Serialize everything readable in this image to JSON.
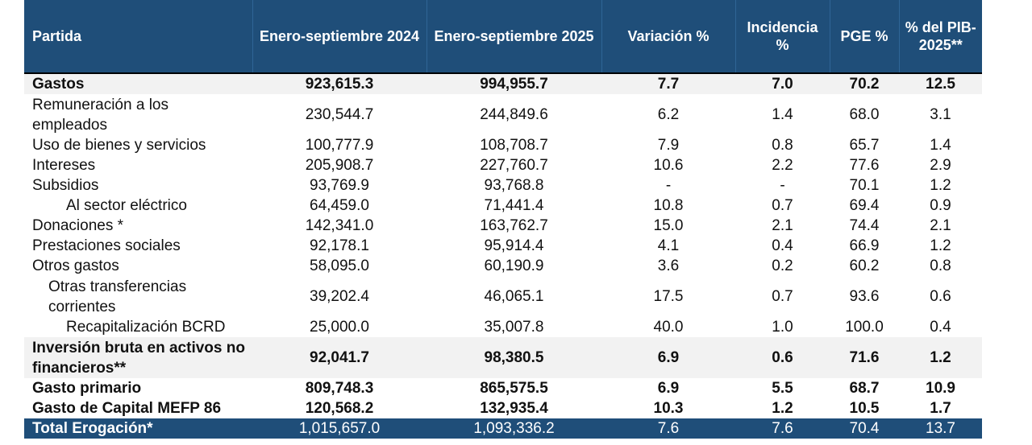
{
  "headers": [
    "Partida",
    "Enero-septiembre 2024",
    "Enero-septiembre 2025",
    "Variación %",
    "Incidencia %",
    "PGE %",
    "% del PIB-2025**"
  ],
  "rows": [
    [
      "Gastos",
      "923,615.3",
      "994,955.7",
      "7.7",
      "7.0",
      "70.2",
      "12.5"
    ],
    [
      "Remuneración a los empleados",
      "230,544.7",
      "244,849.6",
      "6.2",
      "1.4",
      "68.0",
      "3.1"
    ],
    [
      "Uso de bienes y servicios",
      "100,777.9",
      "108,708.7",
      "7.9",
      "0.8",
      "65.7",
      "1.4"
    ],
    [
      "Intereses",
      "205,908.7",
      "227,760.7",
      "10.6",
      "2.2",
      "77.6",
      "2.9"
    ],
    [
      "Subsidios",
      "93,769.9",
      "93,768.8",
      "-",
      "-",
      "70.1",
      "1.2"
    ],
    [
      "Al sector eléctrico",
      "64,459.0",
      "71,441.4",
      "10.8",
      "0.7",
      "69.4",
      "0.9"
    ],
    [
      "Donaciones *",
      "142,341.0",
      "163,762.7",
      "15.0",
      "2.1",
      "74.4",
      "2.1"
    ],
    [
      "Prestaciones sociales",
      "92,178.1",
      "95,914.4",
      "4.1",
      "0.4",
      "66.9",
      "1.2"
    ],
    [
      "Otros gastos",
      "58,095.0",
      "60,190.9",
      "3.6",
      "0.2",
      "60.2",
      "0.8"
    ],
    [
      "Otras transferencias corrientes",
      "39,202.4",
      "46,065.1",
      "17.5",
      "0.7",
      "93.6",
      "0.6"
    ],
    [
      "Recapitalización BCRD",
      "25,000.0",
      "35,007.8",
      "40.0",
      "1.0",
      "100.0",
      "0.4"
    ],
    [
      "Inversión bruta en activos no financieros**",
      "92,041.7",
      "98,380.5",
      "6.9",
      "0.6",
      "71.6",
      "1.2"
    ],
    [
      "Gasto primario",
      "809,748.3",
      "865,575.5",
      "6.9",
      "5.5",
      "68.7",
      "10.9"
    ],
    [
      "Gasto de Capital MEFP 86",
      "120,568.2",
      "132,935.4",
      "10.3",
      "1.2",
      "10.5",
      "1.7"
    ],
    [
      "Total Erogación*",
      "1,015,657.0",
      "1,093,336.2",
      "7.6",
      "7.6",
      "70.4",
      "13.7"
    ]
  ],
  "colors": {
    "header_bg": "#1f4e79",
    "header_text": "#ffffff",
    "shade_bg": "#f2f2f2"
  }
}
